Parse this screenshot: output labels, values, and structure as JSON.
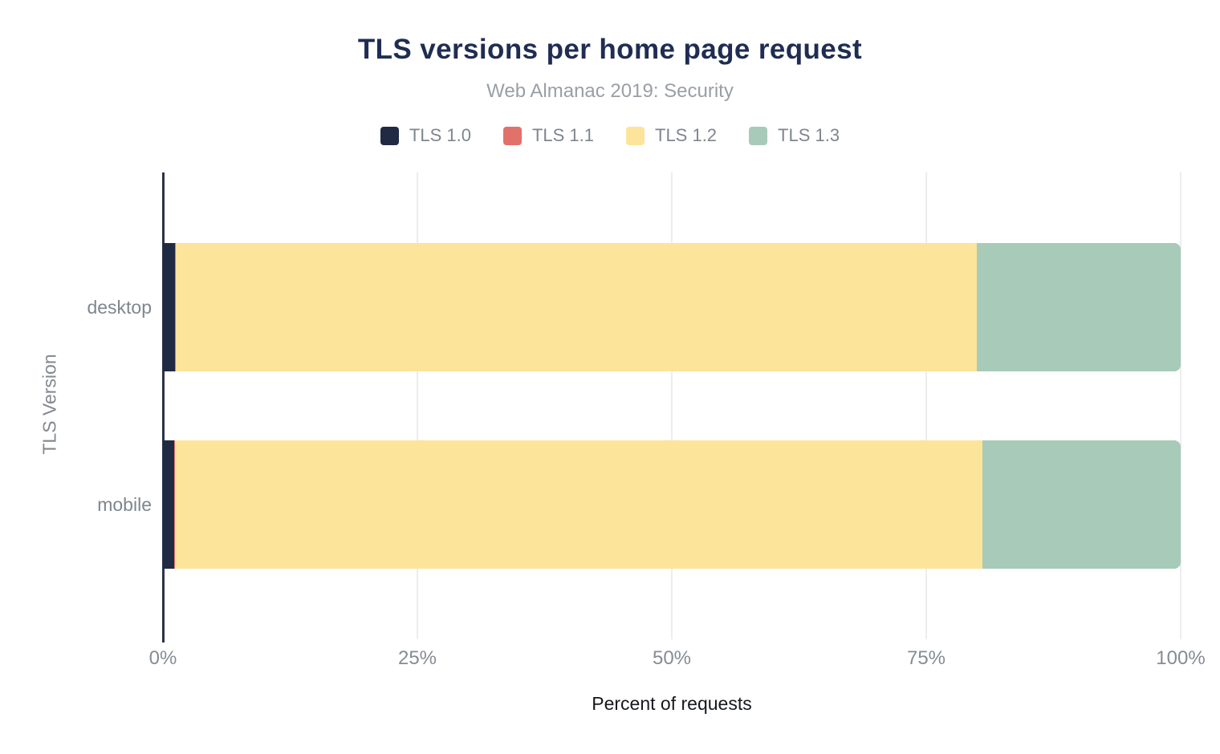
{
  "title": "TLS versions per home page request",
  "subtitle": "Web Almanac 2019: Security",
  "colors": {
    "title": "#1f2d52",
    "subtitle": "#999fa5",
    "axis_line": "#2a3448",
    "gridline": "#ededed",
    "tick_label": "#858c94",
    "category_label": "#7e868e"
  },
  "chart_data": {
    "type": "bar",
    "stacked": true,
    "orientation": "horizontal",
    "title": "TLS versions per home page request",
    "subtitle": "Web Almanac 2019: Security",
    "categories": [
      "desktop",
      "mobile"
    ],
    "series": [
      {
        "name": "TLS 1.0",
        "color": "#1f2b43",
        "values": [
          1.2,
          1.1
        ]
      },
      {
        "name": "TLS 1.1",
        "color": "#e2716a",
        "values": [
          0.1,
          0.1
        ]
      },
      {
        "name": "TLS 1.2",
        "color": "#fde49b",
        "values": [
          78.7,
          79.3
        ]
      },
      {
        "name": "TLS 1.3",
        "color": "#a8cab9",
        "values": [
          20.0,
          19.5
        ]
      }
    ],
    "xlabel": "Percent of requests",
    "ylabel": "TLS Version",
    "x_ticks": [
      "0%",
      "25%",
      "50%",
      "75%",
      "100%"
    ],
    "xlim": [
      0,
      100
    ],
    "grid": "vertical",
    "legend_position": "top"
  }
}
